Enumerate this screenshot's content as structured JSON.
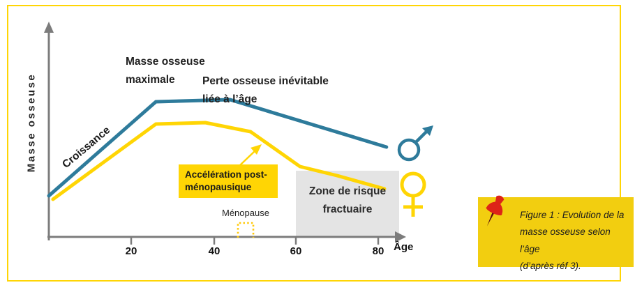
{
  "figure": {
    "frame_border_color": "#FFD504",
    "background": "#FFFFFF"
  },
  "chart": {
    "y_axis_label": "Masse osseuse",
    "x_axis_label": "Âge",
    "labels": {
      "growth": "Croissance",
      "peak": "Masse osseuse\nmaximale",
      "age_loss": "Perte osseuse inévitable\nliée à l’âge",
      "acceleration": "Accélération\npost-ménopausique",
      "menopause": "Ménopause",
      "risk_zone": "Zone de risque\nfractuaire"
    },
    "colors": {
      "male_line": "#2E7B9B",
      "female_line": "#FFD504",
      "axis": "#7C7C7C",
      "risk_zone_fill": "#E4E4E4",
      "accent_yellow": "#FFD504"
    }
  },
  "note": {
    "text": "Figure 1 : Evolution de la\nmasse osseuse selon l’âge\n(d’après réf 3).",
    "background": "#F2CE10",
    "pin_color": "#DD2418"
  },
  "chart_data": {
    "type": "line",
    "title": "Evolution de la masse osseuse selon l’âge",
    "xlabel": "Âge",
    "ylabel": "Masse osseuse",
    "xlim": [
      0,
      85
    ],
    "x_tick_labels": [
      "20",
      "40",
      "60",
      "80"
    ],
    "x_tick_values": [
      20,
      40,
      60,
      80
    ],
    "grid": false,
    "series": [
      {
        "name": "Hommes (♂)",
        "color": "#2E7B9B",
        "points": [
          [
            0,
            29.5
          ],
          [
            26,
            97
          ],
          [
            44,
            98.5
          ],
          [
            82,
            64.5
          ]
        ]
      },
      {
        "name": "Femmes (♀)",
        "color": "#FFD504",
        "points": [
          [
            1,
            27
          ],
          [
            26,
            81
          ],
          [
            38,
            82
          ],
          [
            49,
            75.5
          ],
          [
            61,
            50.5
          ],
          [
            70,
            44
          ],
          [
            81.5,
            34.5
          ]
        ]
      }
    ],
    "annotations": [
      {
        "text": "Croissance",
        "type": "phase",
        "age_range": [
          0,
          26
        ]
      },
      {
        "text": "Masse osseuse maximale",
        "type": "phase",
        "age_range": [
          26,
          44
        ]
      },
      {
        "text": "Perte osseuse inévitable liée à l’âge",
        "type": "phase",
        "age_range": [
          44,
          85
        ]
      },
      {
        "text": "Accélération post-ménopausique",
        "type": "callout",
        "target_age": 52
      },
      {
        "text": "Ménopause",
        "type": "marker",
        "age_range": [
          46,
          50
        ]
      },
      {
        "text": "Zone de risque fractuaire",
        "type": "zone",
        "age_range": [
          60,
          85
        ]
      }
    ]
  }
}
